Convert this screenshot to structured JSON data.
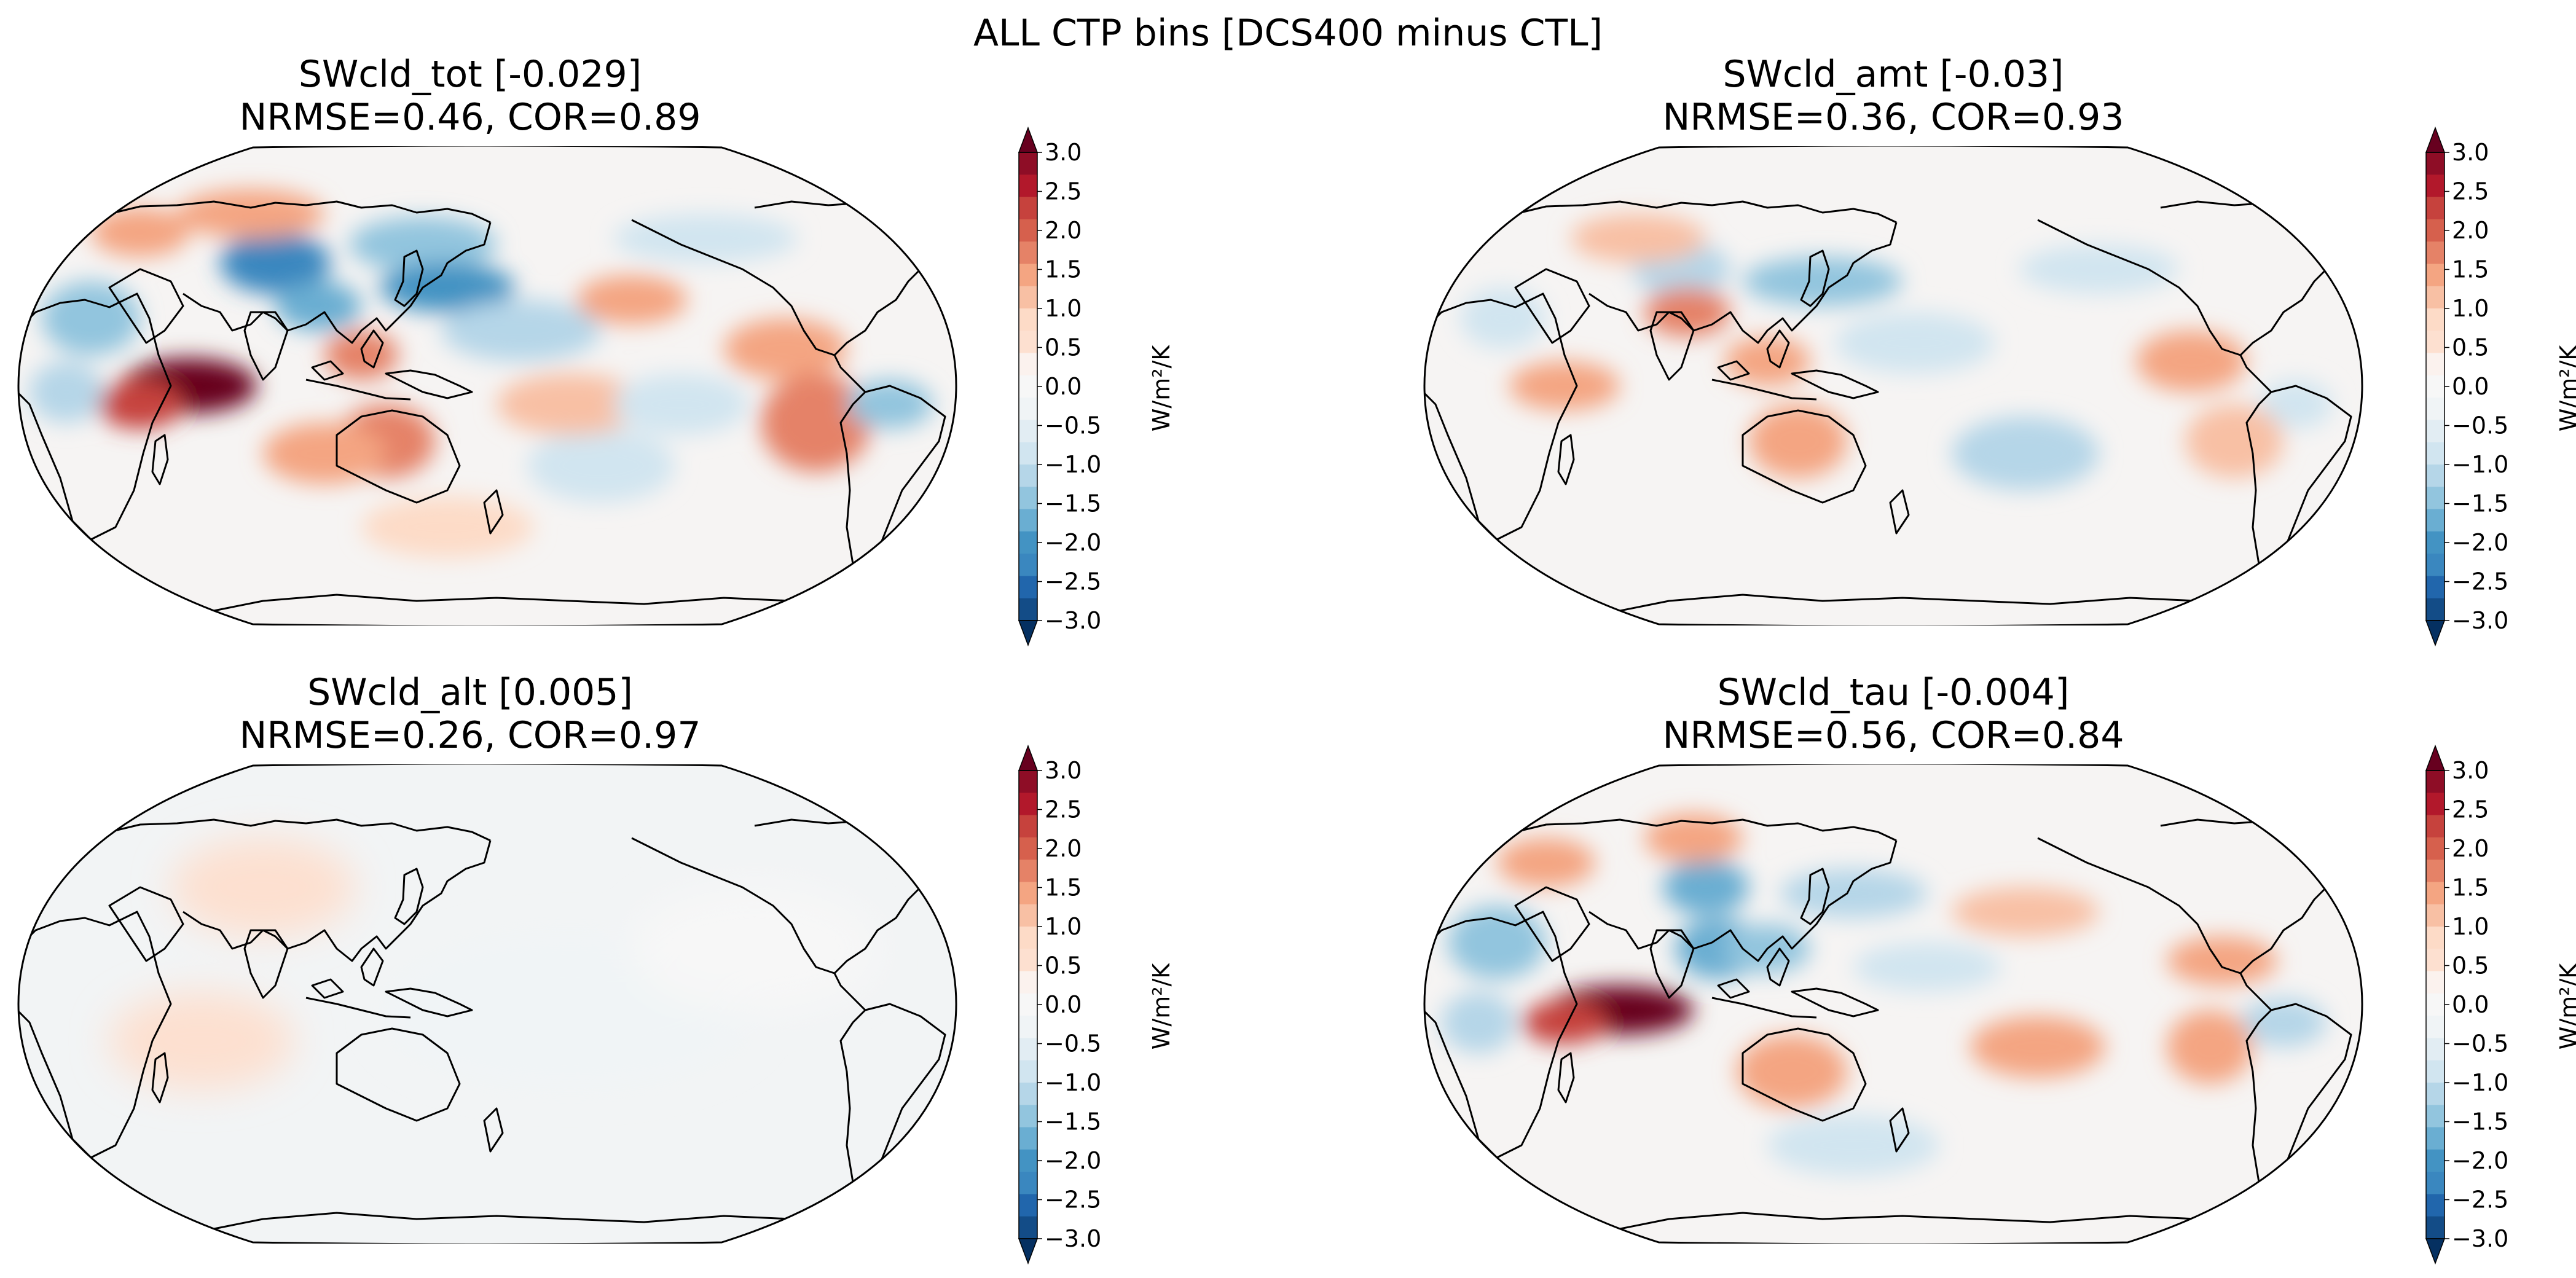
{
  "figure_title": "ALL CTP bins [DCS400 minus CTL]",
  "colorbar": {
    "label": "W/m²/K",
    "ticks": [
      "3.0",
      "2.5",
      "2.0",
      "1.5",
      "1.0",
      "0.5",
      "0.0",
      "−0.5",
      "−1.0",
      "−1.5",
      "−2.0",
      "−2.5",
      "−3.0"
    ],
    "range": [
      -3.0,
      3.0
    ],
    "step": 0.25,
    "extend": "both",
    "colormap": "RdBu_r",
    "colors": [
      "#053061",
      "#134c87",
      "#2166ac",
      "#3a87bf",
      "#4393c3",
      "#6aaed2",
      "#92c5de",
      "#b5d6e8",
      "#d1e5f0",
      "#e2edf3",
      "#f0f4f6",
      "#f7f7f7",
      "#fbf2ee",
      "#fde0d0",
      "#fddbc7",
      "#f8c0a4",
      "#f4a582",
      "#e58267",
      "#d6604d",
      "#c6423d",
      "#b2182b",
      "#8e0d26",
      "#67001f"
    ]
  },
  "chart_data": [
    {
      "type": "map",
      "name": "SWcld_tot",
      "global_mean": -0.029,
      "title_line1": "SWcld_tot [-0.029]",
      "title_line2": "NRMSE=0.46, COR=0.89",
      "nrmse": 0.46,
      "cor": 0.89
    },
    {
      "type": "map",
      "name": "SWcld_amt",
      "global_mean": -0.03,
      "title_line1": "SWcld_amt [-0.03]",
      "title_line2": "NRMSE=0.36, COR=0.93",
      "nrmse": 0.36,
      "cor": 0.93
    },
    {
      "type": "map",
      "name": "SWcld_alt",
      "global_mean": 0.005,
      "title_line1": "SWcld_alt [0.005]",
      "title_line2": "NRMSE=0.26, COR=0.97",
      "nrmse": 0.26,
      "cor": 0.97
    },
    {
      "type": "map",
      "name": "SWcld_tau",
      "global_mean": -0.004,
      "title_line1": "SWcld_tau [-0.004]",
      "title_line2": "NRMSE=0.56, COR=0.84",
      "nrmse": 0.56,
      "cor": 0.84
    }
  ]
}
